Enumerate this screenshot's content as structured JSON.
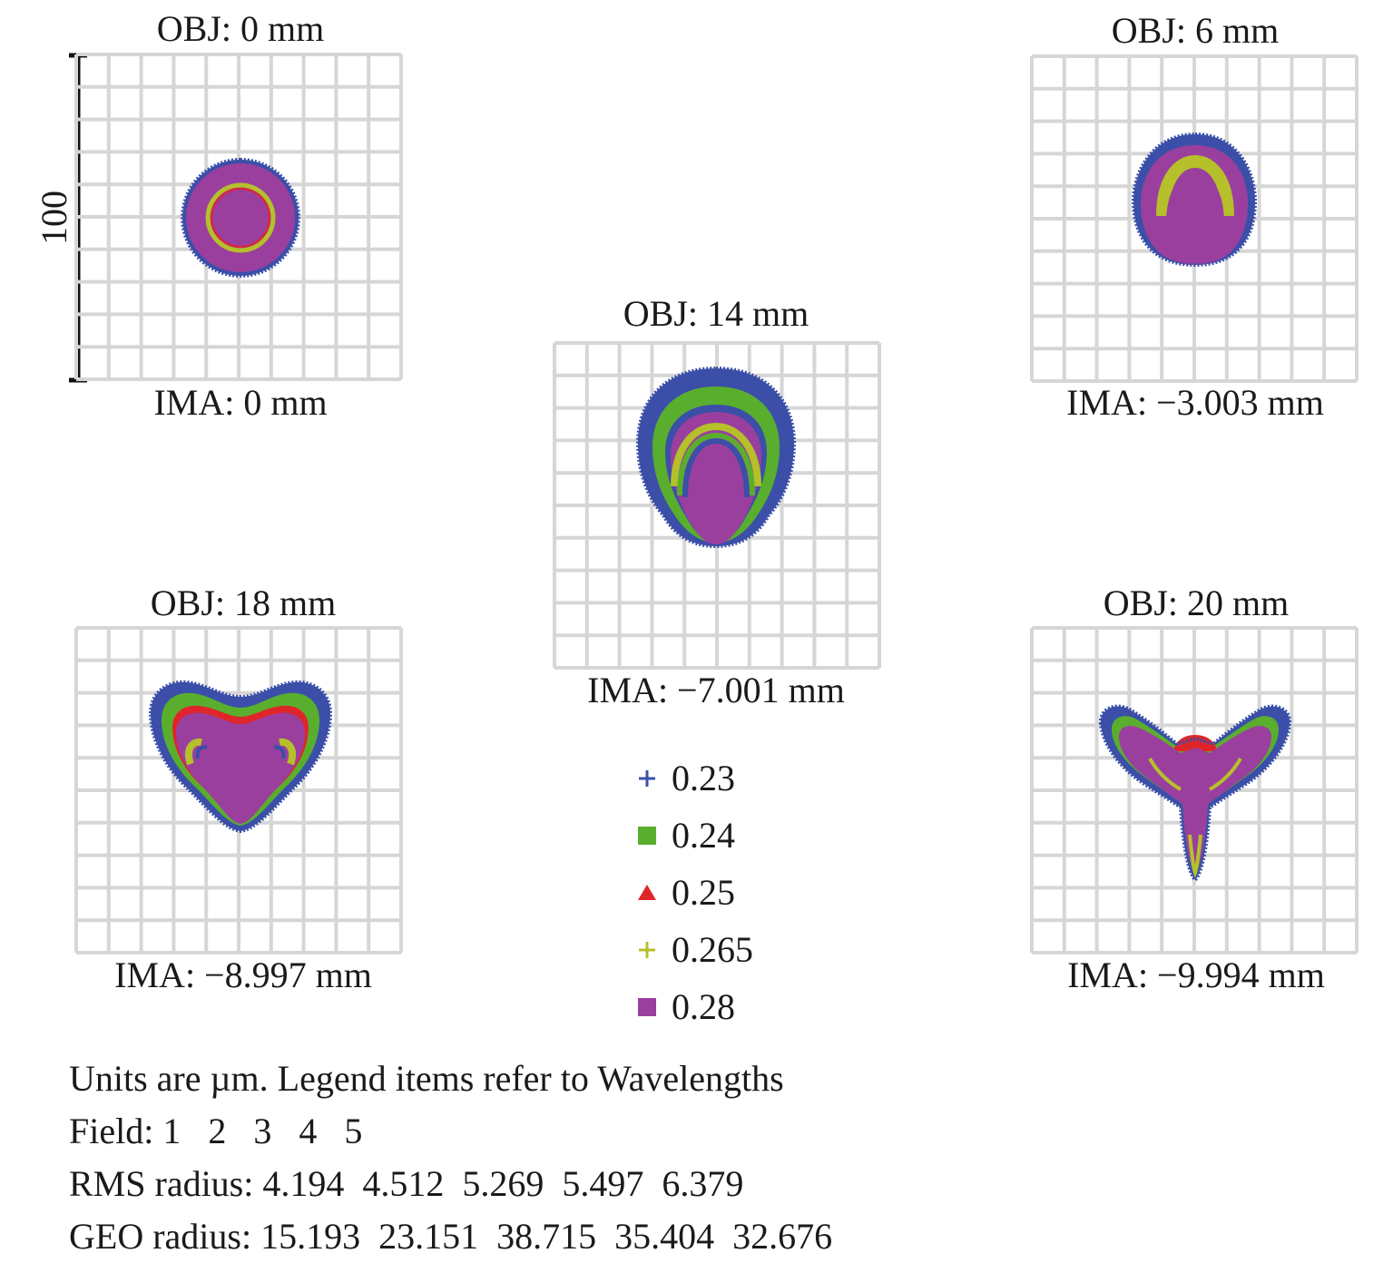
{
  "chart_data": {
    "type": "scatter",
    "subtype": "spot-diagram",
    "grid": true,
    "grid_divisions": 10,
    "scale_bar": {
      "value": "100",
      "units": "µm"
    },
    "wavelengths": [
      {
        "label": "0.23",
        "marker": "plus",
        "color": "#3b4fa8"
      },
      {
        "label": "0.24",
        "marker": "square",
        "color": "#5aae2e"
      },
      {
        "label": "0.25",
        "marker": "triangle",
        "color": "#e0252a"
      },
      {
        "label": "0.265",
        "marker": "plus",
        "color": "#b5c02a"
      },
      {
        "label": "0.28",
        "marker": "square",
        "color": "#9a3f9e"
      }
    ],
    "fields": [
      {
        "field": 1,
        "obj": "OBJ: 0 mm",
        "ima": "IMA: 0 mm",
        "rms": 4.194,
        "geo": 15.193,
        "shape": "disk"
      },
      {
        "field": 2,
        "obj": "OBJ: 6 mm",
        "ima": "IMA: −3.003 mm",
        "rms": 4.512,
        "geo": 23.151,
        "shape": "dome"
      },
      {
        "field": 3,
        "obj": "OBJ: 14 mm",
        "ima": "IMA: −7.001 mm",
        "rms": 5.269,
        "geo": 38.715,
        "shape": "bell"
      },
      {
        "field": 4,
        "obj": "OBJ: 18 mm",
        "ima": "IMA: −8.997 mm",
        "rms": 5.497,
        "geo": 35.404,
        "shape": "heart"
      },
      {
        "field": 5,
        "obj": "OBJ: 20 mm",
        "ima": "IMA: −9.994 mm",
        "rms": 6.379,
        "geo": 32.676,
        "shape": "trefoil"
      }
    ]
  },
  "footer": {
    "units_line": "Units are µm. Legend items refer to Wavelengths",
    "field_line": "Field: 1   2   3   4   5",
    "rms_line": "RMS radius: 4.194  4.512  5.269  5.497  6.379",
    "geo_line": "GEO radius: 15.193  23.151  38.715  35.404  32.676"
  },
  "colors": {
    "grid": "#d6d6d6",
    "blue": "#3b4fa8",
    "green": "#5aae2e",
    "red": "#e0252a",
    "olive": "#b5c02a",
    "purple": "#9a3f9e"
  }
}
